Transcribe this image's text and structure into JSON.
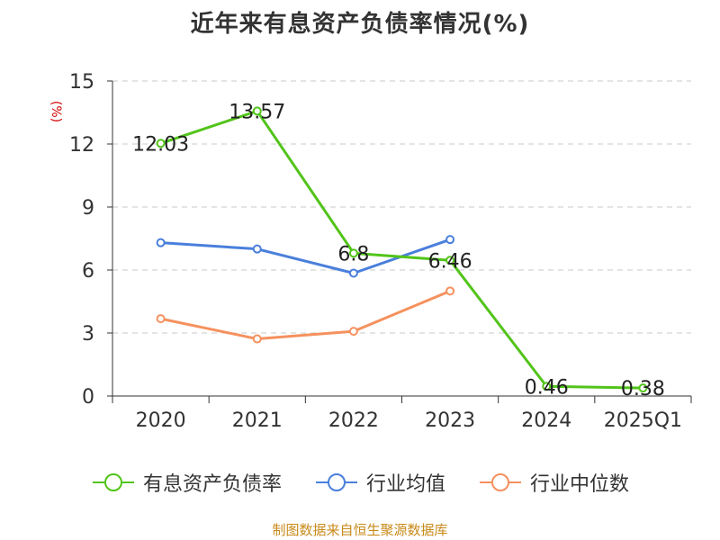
{
  "title": "近年来有息资产负债率情况(%)",
  "unit_label": "(%)",
  "source": "制图数据来自恒生聚源数据库",
  "chart_data": {
    "type": "line",
    "title": "近年来有息资产负债率情况(%)",
    "ylabel": "(%)",
    "categories": [
      "2020",
      "2021",
      "2022",
      "2023",
      "2024",
      "2025Q1"
    ],
    "ylim": [
      0,
      15
    ],
    "yticks": [
      0,
      3,
      6,
      9,
      12,
      15
    ],
    "grid": true,
    "legend_position": "bottom",
    "series": [
      {
        "name": "有息资产负债率",
        "color": "#52c41a",
        "values": [
          12.03,
          13.57,
          6.8,
          6.46,
          0.46,
          0.38
        ],
        "labels": [
          "12.03",
          "13.57",
          "6.8",
          "6.46",
          "0.46",
          "0.38"
        ]
      },
      {
        "name": "行业均值",
        "color": "#4a7fdc",
        "values": [
          7.3,
          7.0,
          5.85,
          7.45,
          null,
          null
        ]
      },
      {
        "name": "行业中位数",
        "color": "#f5915e",
        "values": [
          3.68,
          2.72,
          3.08,
          5.0,
          null,
          null
        ]
      }
    ]
  }
}
